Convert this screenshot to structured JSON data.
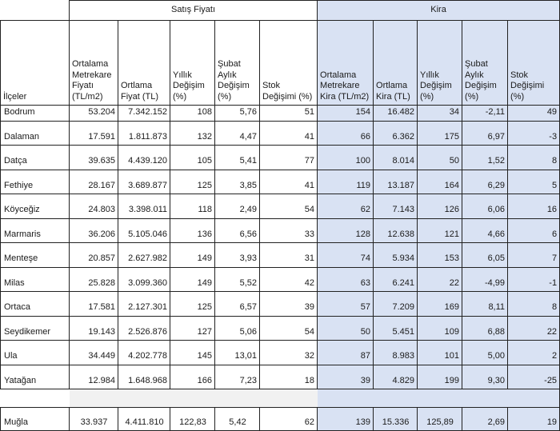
{
  "table": {
    "title_sale_group": "Satış Fiyatı",
    "title_rent_group": "Kira",
    "row_header": "İlçeler",
    "sale_columns": [
      "Ortalama Metrekare Fiyatı (TL/m2)",
      "Ortlama Fiyat (TL)",
      "Yıllık Değişim (%)",
      "Şubat Aylık Değişim (%)",
      "Stok Değişimi (%)"
    ],
    "rent_columns": [
      "Ortalama Metrekare Kira (TL/m2)",
      "Ortlama Kira (TL)",
      "Yıllık Değişim (%)",
      "Şubat Aylık Değişim (%)",
      "Stok Değişimi (%)"
    ],
    "rows": [
      {
        "district": "Bodrum",
        "values": [
          "53.204",
          "7.342.152",
          "108",
          "5,76",
          "51",
          "154",
          "16.482",
          "34",
          "-2,11",
          "49"
        ]
      },
      {
        "district": "Dalaman",
        "values": [
          "17.591",
          "1.811.873",
          "132",
          "4,47",
          "41",
          "66",
          "6.362",
          "175",
          "6,97",
          "-3"
        ]
      },
      {
        "district": "Datça",
        "values": [
          "39.635",
          "4.439.120",
          "105",
          "5,41",
          "77",
          "100",
          "8.014",
          "50",
          "1,52",
          "8"
        ]
      },
      {
        "district": "Fethiye",
        "values": [
          "28.167",
          "3.689.877",
          "125",
          "3,85",
          "41",
          "119",
          "13.187",
          "164",
          "6,29",
          "5"
        ]
      },
      {
        "district": "Köyceğiz",
        "values": [
          "24.803",
          "3.398.011",
          "118",
          "2,49",
          "54",
          "62",
          "7.143",
          "126",
          "6,06",
          "16"
        ]
      },
      {
        "district": "Marmaris",
        "values": [
          "36.206",
          "5.105.046",
          "136",
          "6,56",
          "33",
          "128",
          "12.638",
          "121",
          "4,66",
          "6"
        ]
      },
      {
        "district": "Menteşe",
        "values": [
          "20.857",
          "2.627.982",
          "149",
          "3,93",
          "31",
          "74",
          "5.934",
          "153",
          "6,05",
          "7"
        ]
      },
      {
        "district": "Milas",
        "values": [
          "25.828",
          "3.099.360",
          "149",
          "5,52",
          "42",
          "63",
          "6.241",
          "22",
          "-4,99",
          "-1"
        ]
      },
      {
        "district": "Ortaca",
        "values": [
          "17.581",
          "2.127.301",
          "125",
          "6,57",
          "39",
          "57",
          "7.209",
          "169",
          "8,11",
          "8"
        ]
      },
      {
        "district": "Seydikemer",
        "values": [
          "19.143",
          "2.526.876",
          "127",
          "5,06",
          "54",
          "50",
          "5.451",
          "109",
          "6,88",
          "22"
        ]
      },
      {
        "district": "Ula",
        "values": [
          "34.449",
          "4.202.778",
          "145",
          "13,01",
          "32",
          "87",
          "8.983",
          "101",
          "5,00",
          "2"
        ]
      },
      {
        "district": "Yatağan",
        "values": [
          "12.984",
          "1.648.968",
          "166",
          "7,23",
          "18",
          "39",
          "4.829",
          "199",
          "9,30",
          "-25"
        ]
      }
    ],
    "total_row": {
      "district": "Muğla",
      "values": [
        "33.937",
        "4.411.810",
        "122,83",
        "5,42",
        "62",
        "139",
        "15.336",
        "125,89",
        "2,69",
        "19"
      ]
    }
  },
  "colors": {
    "rent_fill": "#d9e2f3",
    "spacer_fill": "#f1f1f1",
    "border": "#222222"
  }
}
